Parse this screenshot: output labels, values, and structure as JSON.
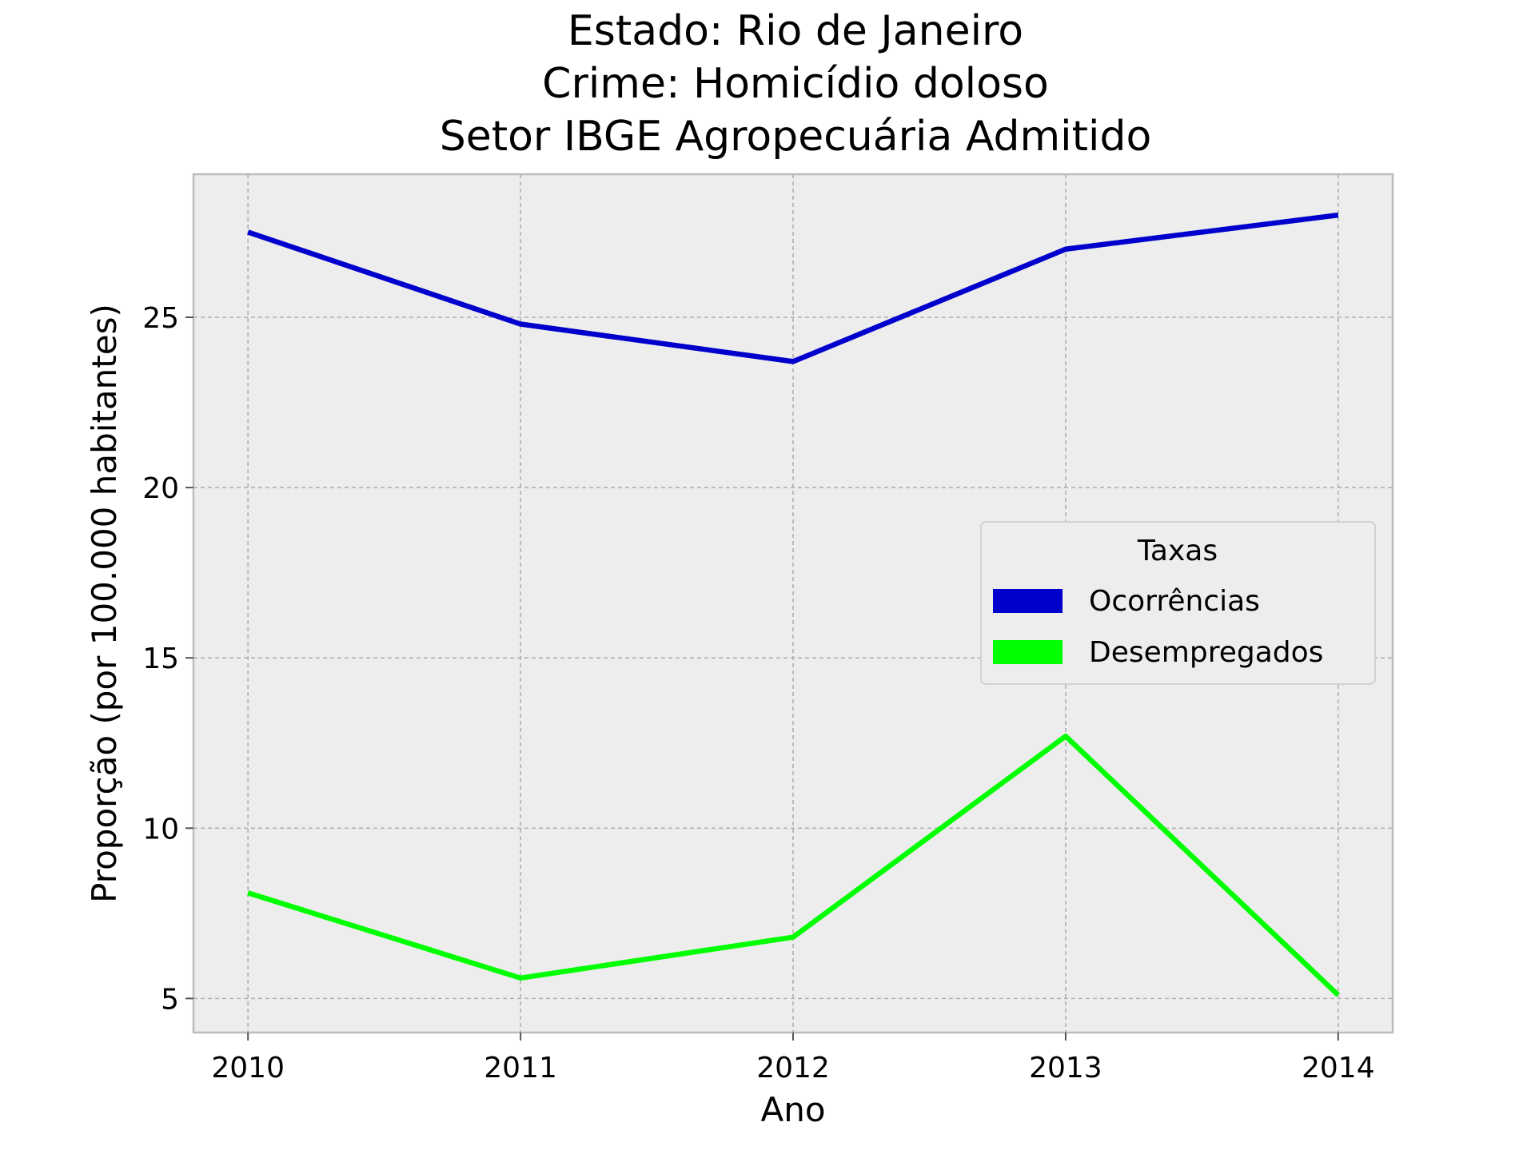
{
  "chart_data": {
    "type": "line",
    "title_lines": [
      "Estado: Rio de Janeiro",
      "Crime: Homicídio doloso",
      "Setor IBGE  Agropecuária   Admitido"
    ],
    "xlabel": "Ano",
    "ylabel": "Proporção (por 100.000 habitantes)",
    "x": [
      "2010",
      "2011",
      "2012",
      "2013",
      "2014"
    ],
    "xlim": [
      2009.8,
      2014.2
    ],
    "ylim": [
      4.0,
      29.2
    ],
    "yticks": [
      5,
      10,
      15,
      20,
      25
    ],
    "grid": true,
    "background": "#ededed",
    "legend": {
      "title": "Taxas",
      "placement": "center-right"
    },
    "series": [
      {
        "name": "Ocorrências",
        "color": "#0000cc",
        "values": [
          27.5,
          24.8,
          23.7,
          27.0,
          28.0
        ]
      },
      {
        "name": "Desempregados",
        "color": "#00ff00",
        "values": [
          8.1,
          5.6,
          6.8,
          12.7,
          5.1
        ]
      }
    ]
  }
}
